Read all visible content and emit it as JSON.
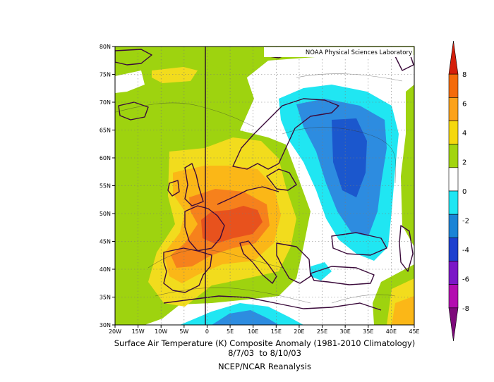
{
  "credit": "NOAA Physical Sciences Laboratory",
  "caption": {
    "line1": "Surface Air Temperature (K) Composite Anomaly (1981-2010 Climatology)",
    "line2": "8/7/03  to 8/10/03",
    "line3": "NCEP/NCAR Reanalysis"
  },
  "lat_ticks": [
    "80N",
    "75N",
    "70N",
    "65N",
    "60N",
    "55N",
    "50N",
    "45N",
    "40N",
    "35N",
    "30N"
  ],
  "lon_ticks": [
    "20W",
    "15W",
    "10W",
    "5W",
    "0",
    "5E",
    "10E",
    "15E",
    "20E",
    "25E",
    "30E",
    "35E",
    "40E",
    "45E"
  ],
  "colorbar": {
    "labels": [
      "8",
      "6",
      "4",
      "2",
      "0",
      "-2",
      "-4",
      "-6",
      "-8"
    ],
    "colors": [
      "#d51f0b",
      "#f46b0b",
      "#fca21b",
      "#f5d80d",
      "#a2d50f",
      "#ffffff",
      "#1fe6f3",
      "#1b84d6",
      "#1d40cf",
      "#7b17c7",
      "#b30cb0",
      "#7e0a7b"
    ]
  },
  "map_colors": {
    "ocean_neutral": "#ffffff",
    "warm_2_4": "#9ed30f",
    "warm_4_5": "#f2dc1d",
    "warm_5_6": "#fbb717",
    "warm_6_7": "#f6811c",
    "warm_7_8": "#e8521d",
    "cool_0_2": "#20e6f2",
    "cool_2_3": "#2d8ce0",
    "cool_3_4": "#1b57cd",
    "coast": "#3a0a3a"
  }
}
